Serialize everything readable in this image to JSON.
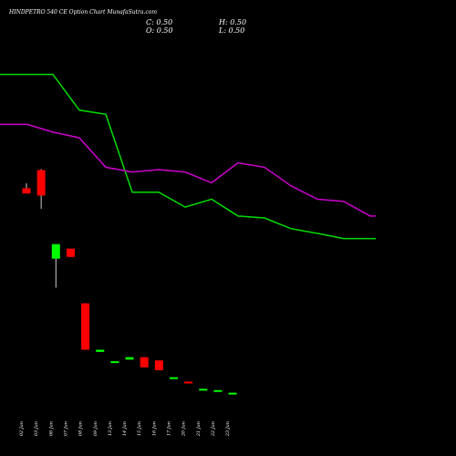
{
  "header": {
    "title": "HINDPETRO 540  CE Option  Chart MunafaSutra.com",
    "close": "C: 0.50",
    "open": "O: 0.50",
    "high": "H: 0.50",
    "low": "L: 0.50"
  },
  "colors": {
    "background": "#000000",
    "up": "#00ff00",
    "down": "#ff0000",
    "ma_green": "#00dd00",
    "ma_magenta": "#cc00cc",
    "text": "#ffffff"
  },
  "chart_data": {
    "type": "candlestick",
    "title": "HINDPETRO 540  CE Option  Chart MunafaSutra.com",
    "categories": [
      "02 Jan",
      "03 Jan",
      "06 Jan",
      "07 Jan",
      "08 Jan",
      "09 Jan",
      "13 Jan",
      "14 Jan",
      "15 Jan",
      "16 Jan",
      "17 Jan",
      "20 Jan",
      "21 Jan",
      "22 Jan",
      "23 Jan"
    ],
    "candles": [
      {
        "open": 9.8,
        "close": 10.6,
        "high": 11.4,
        "low": 9.8,
        "dir": "down"
      },
      {
        "open": 13.9,
        "close": 9.5,
        "high": 14.1,
        "low": 7.8,
        "dir": "down"
      },
      {
        "open": 3.7,
        "close": 4.6,
        "high": 4.6,
        "low": 2.4,
        "dir": "up"
      },
      {
        "open": 4.3,
        "close": 3.8,
        "high": 4.3,
        "low": 3.8,
        "dir": "down"
      },
      {
        "open": 1.9,
        "close": 0.95,
        "high": 1.9,
        "low": 0.95,
        "dir": "down"
      },
      {
        "open": 0.95,
        "close": 0.92,
        "high": 0.95,
        "low": 0.92,
        "dir": "up"
      },
      {
        "open": 0.8,
        "close": 0.79,
        "high": 0.8,
        "low": 0.79,
        "dir": "up"
      },
      {
        "open": 0.82,
        "close": 0.85,
        "high": 0.85,
        "low": 0.82,
        "dir": "up"
      },
      {
        "open": 0.85,
        "close": 0.73,
        "high": 0.85,
        "low": 0.73,
        "dir": "down"
      },
      {
        "open": 0.81,
        "close": 0.7,
        "high": 0.81,
        "low": 0.7,
        "dir": "down"
      },
      {
        "open": 0.63,
        "close": 0.63,
        "high": 0.63,
        "low": 0.63,
        "dir": "up"
      },
      {
        "open": 0.59,
        "close": 0.58,
        "high": 0.59,
        "low": 0.58,
        "dir": "down"
      },
      {
        "open": 0.53,
        "close": 0.52,
        "high": 0.53,
        "low": 0.52,
        "dir": "up"
      },
      {
        "open": 0.52,
        "close": 0.52,
        "high": 0.52,
        "low": 0.52,
        "dir": "up"
      },
      {
        "open": 0.5,
        "close": 0.5,
        "high": 0.5,
        "low": 0.5,
        "dir": "up"
      }
    ],
    "moving_averages": [
      {
        "color": "green",
        "values": [
          58,
          58,
          58,
          34,
          32,
          10,
          10,
          8,
          9,
          7,
          6.8,
          5.8,
          5.4,
          5.0,
          5.0
        ]
      },
      {
        "color": "magenta",
        "values": [
          27.5,
          27.5,
          24.5,
          22.5,
          14.5,
          13.5,
          14,
          13.5,
          11.5,
          15.5,
          14.5,
          11,
          9,
          8.7,
          7
        ]
      }
    ],
    "y_scale": "log",
    "ylim": [
      0.4,
      80
    ],
    "grid": false,
    "legend": "none"
  }
}
